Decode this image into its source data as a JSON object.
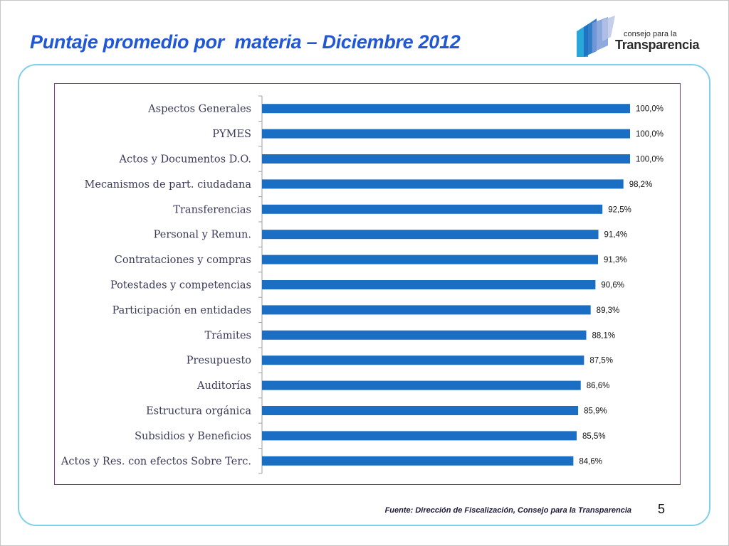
{
  "slide": {
    "title": "Puntaje promedio por  materia – Diciembre 2012",
    "logo_small": "consejo para la",
    "logo_big": "Transparencia",
    "source": "Fuente: Dirección de Fiscalización, Consejo para la Transparencia",
    "page_number": "5"
  },
  "colors": {
    "bar": "#1a6fc4",
    "title": "#1f57d4",
    "frame_border": "#7fd0e8",
    "chart_border": "#7a3c8c"
  },
  "chart_data": {
    "type": "bar",
    "orientation": "horizontal",
    "categories": [
      "Aspectos Generales",
      "PYMES",
      "Actos y Documentos D.O.",
      "Mecanismos de part. ciudadana",
      "Transferencias",
      "Personal y Remun.",
      "Contrataciones y compras",
      "Potestades y competencias",
      "Participación en entidades",
      "Trámites",
      "Presupuesto",
      "Auditorías",
      "Estructura orgánica",
      "Subsidios y Beneficios",
      "Actos y Res. con efectos Sobre Terc."
    ],
    "values": [
      100.0,
      100.0,
      100.0,
      98.2,
      92.5,
      91.4,
      91.3,
      90.6,
      89.3,
      88.1,
      87.5,
      86.6,
      85.9,
      85.5,
      84.6
    ],
    "data_labels": [
      "100,0%",
      "100,0%",
      "100,0%",
      "98,2%",
      "92,5%",
      "91,4%",
      "91,3%",
      "90,6%",
      "89,3%",
      "88,1%",
      "87,5%",
      "86,6%",
      "85,9%",
      "85,5%",
      "84,6%"
    ],
    "xlim": [
      0,
      100
    ],
    "grid": false,
    "legend": "none"
  }
}
